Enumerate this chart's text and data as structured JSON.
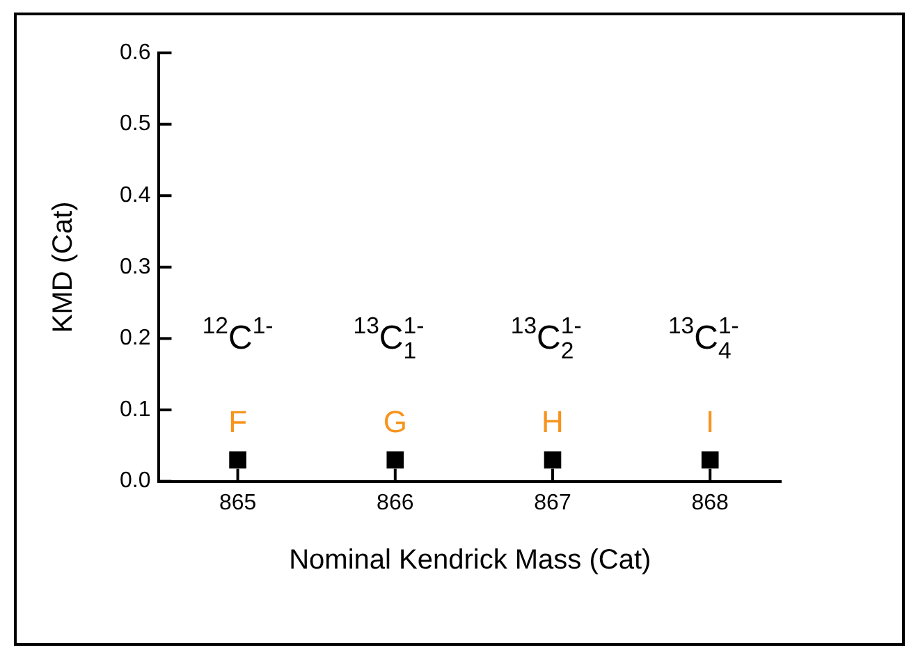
{
  "chart_data": {
    "type": "scatter",
    "xlabel": "Nominal Kendrick Mass (Cat)",
    "ylabel": "KMD (Cat)",
    "x": [
      865,
      866,
      867,
      868
    ],
    "values": [
      0.03,
      0.03,
      0.03,
      0.03
    ],
    "color": "#000000",
    "marker": "square",
    "xlim": [
      864.5,
      868.45
    ],
    "xticks": [
      865,
      866,
      867,
      868
    ],
    "ylim": [
      0,
      0.6
    ],
    "yticks": [
      {
        "value": 0,
        "label": "0.0"
      },
      0.1,
      0.2,
      0.3,
      0.4,
      0.5,
      0.6
    ],
    "grid": false,
    "legend": false,
    "annotations": [
      "$^{12}$C$^{1-}$",
      "$^{13}$C$_{1}$$^{1-}$",
      "$^{13}$C$_{2}$$^{1-}$",
      "$^{13}$C$_{4}$$^{1-}$",
      "F",
      "G",
      "H",
      "I"
    ]
  }
}
